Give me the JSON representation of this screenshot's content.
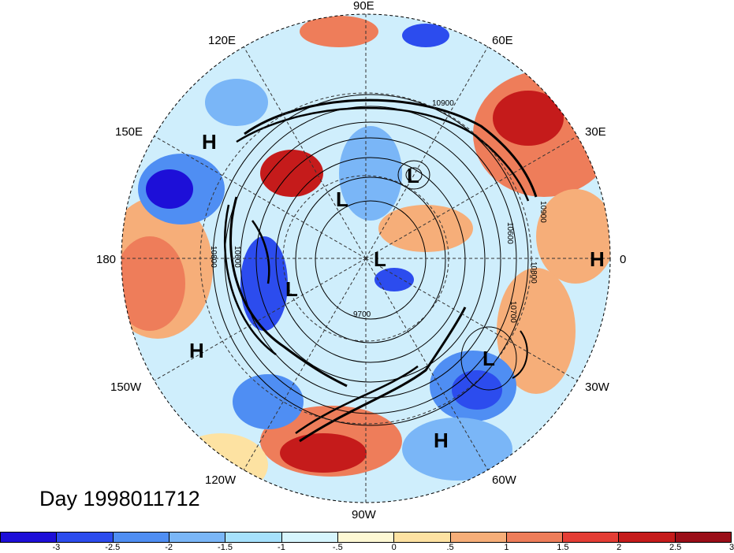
{
  "longitude_labels": {
    "e90": "90E",
    "e120": "120E",
    "e60": "60E",
    "e150": "150E",
    "e30": "30E",
    "lon180": "180",
    "lon0": "0",
    "w150": "150W",
    "w30": "30W",
    "w120": "120W",
    "w60": "60W",
    "w90": "90W"
  },
  "pressure_centers": [
    {
      "type": "H"
    },
    {
      "type": "L"
    },
    {
      "type": "L"
    },
    {
      "type": "L"
    },
    {
      "type": "H"
    },
    {
      "type": "L"
    },
    {
      "type": "H"
    },
    {
      "type": "L"
    },
    {
      "type": "H"
    }
  ],
  "contour_labels": {
    "c10900": "10900",
    "c10800": "10800",
    "c10600": "10600",
    "c10600b": "10600",
    "c10800b": "10800",
    "c10900b": "10900",
    "c10700": "10700",
    "c9700": "9700"
  },
  "day_label": "Day 1998011712",
  "colorbar": {
    "colors": [
      "#1d0fd8",
      "#2c4cee",
      "#4f8ef3",
      "#7ab6f7",
      "#a6e1fc",
      "#d6f5fd",
      "#fdf8d4",
      "#fde2a2",
      "#f6ae79",
      "#ee7d5a",
      "#e43d35",
      "#c51b1b",
      "#9a0e18"
    ],
    "ticks": [
      "-3",
      "-2.5",
      "-2",
      "-1.5",
      "-1",
      "-.5",
      "0",
      ".5",
      "1",
      "1.5",
      "2",
      "2.5",
      "3"
    ]
  }
}
